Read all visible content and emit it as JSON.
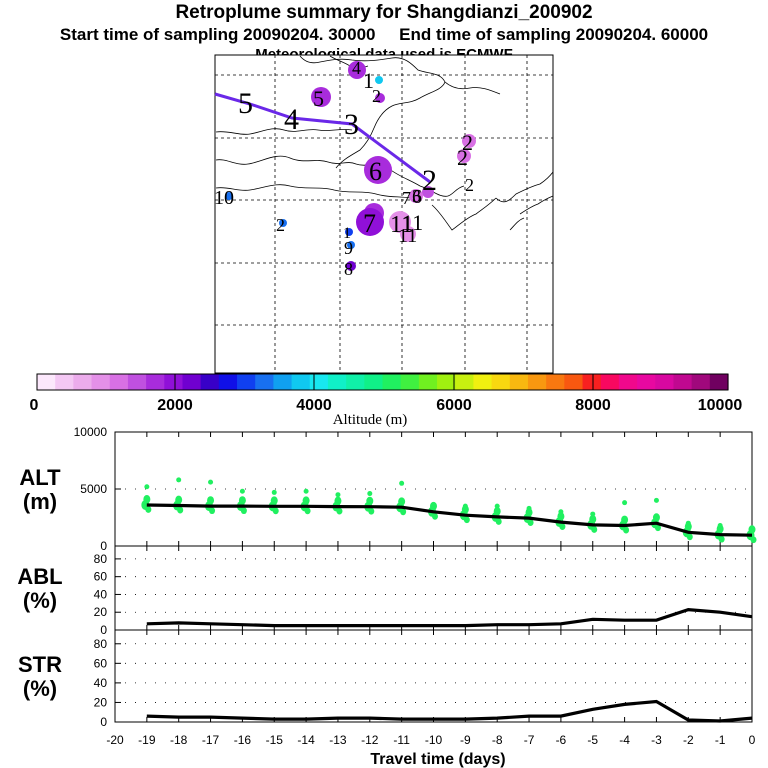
{
  "header": {
    "title": "Retroplume summary for Shangdianzi_200902",
    "start_label": "Start time of sampling 20090204. 30000",
    "end_label": "End time of sampling 20090204. 60000",
    "met_label": "Meteorological data used is ECMWF"
  },
  "colorbar": {
    "label": "Altitude (m)",
    "ticks": [
      "0",
      "2000",
      "4000",
      "6000",
      "8000",
      "10000"
    ],
    "colors": [
      "#fce8fc",
      "#f4c8f4",
      "#ecacec",
      "#e490e8",
      "#d870e4",
      "#c050e0",
      "#a82cdc",
      "#9010d8",
      "#7000d0",
      "#3800c8",
      "#1010e8",
      "#1040f0",
      "#1870f0",
      "#10a0f0",
      "#10c8f0",
      "#18e8f0",
      "#10f0c8",
      "#10f0a8",
      "#10f088",
      "#20f060",
      "#40f040",
      "#70f020",
      "#a0f010",
      "#c8f010",
      "#f0f010",
      "#f8d810",
      "#f8b810",
      "#f89810",
      "#f87810",
      "#f85810",
      "#f82020",
      "#f80860",
      "#f0088c",
      "#e808a0",
      "#d808a0",
      "#c00890",
      "#a0087c",
      "#700060"
    ]
  },
  "map": {
    "labels": [
      "5",
      "4",
      "3",
      "2",
      "1",
      "6",
      "7",
      "8",
      "9",
      "10",
      "11",
      "2",
      "2",
      "2",
      "2",
      "2",
      "1",
      "1",
      "9",
      "8",
      "4",
      "5",
      "7",
      "3",
      "11",
      "11",
      "6"
    ]
  },
  "chart_data": [
    {
      "type": "line",
      "name": "ALT",
      "ylabel_lines": [
        "ALT",
        "(m)"
      ],
      "ylim": [
        0,
        10000
      ],
      "yticks": [
        "0",
        "5000",
        "10000"
      ],
      "x": [
        -19,
        -18,
        -17,
        -16,
        -15,
        -14,
        -13,
        -12,
        -11,
        -10,
        -9,
        -8,
        -7,
        -6,
        -5,
        -4,
        -3,
        -2,
        -1,
        0
      ],
      "values": [
        3600,
        3550,
        3500,
        3500,
        3480,
        3480,
        3460,
        3450,
        3400,
        3000,
        2700,
        2550,
        2450,
        2100,
        1850,
        1800,
        2000,
        1200,
        1000,
        950
      ],
      "upper_points": [
        5200,
        5800,
        5600,
        4800,
        4700,
        4800,
        4500,
        4600,
        5500,
        3300,
        3500,
        3500,
        3300,
        3000,
        2800,
        3800,
        4000,
        2000,
        1800,
        1500
      ]
    },
    {
      "type": "line",
      "name": "ABL",
      "ylabel_lines": [
        "ABL",
        "(%)"
      ],
      "ylim": [
        0,
        90
      ],
      "yticks": [
        "0",
        "20",
        "40",
        "60",
        "80"
      ],
      "x": [
        -19,
        -18,
        -17,
        -16,
        -15,
        -14,
        -13,
        -12,
        -11,
        -10,
        -9,
        -8,
        -7,
        -6,
        -5,
        -4,
        -3,
        -2,
        -1,
        0
      ],
      "values": [
        7,
        8,
        7,
        6,
        5,
        5,
        5,
        5,
        5,
        5,
        5,
        6,
        6,
        7,
        12,
        11,
        11,
        23,
        20,
        15
      ]
    },
    {
      "type": "line",
      "name": "STR",
      "ylabel_lines": [
        "STR",
        "(%)"
      ],
      "ylim": [
        0,
        90
      ],
      "yticks": [
        "0",
        "20",
        "40",
        "60",
        "80"
      ],
      "x": [
        -19,
        -18,
        -17,
        -16,
        -15,
        -14,
        -13,
        -12,
        -11,
        -10,
        -9,
        -8,
        -7,
        -6,
        -5,
        -4,
        -3,
        -2,
        -1,
        0
      ],
      "values": [
        6,
        5,
        5,
        4,
        3,
        3,
        4,
        4,
        3,
        3,
        3,
        4,
        6,
        6,
        13,
        18,
        21,
        2,
        1,
        4
      ]
    }
  ],
  "xaxis": {
    "label": "Travel time (days)",
    "ticks": [
      "-20",
      "-19",
      "-18",
      "-17",
      "-16",
      "-15",
      "-14",
      "-13",
      "-12",
      "-11",
      "-10",
      "-9",
      "-8",
      "-7",
      "-6",
      "-5",
      "-4",
      "-3",
      "-2",
      "-1",
      "0"
    ]
  }
}
